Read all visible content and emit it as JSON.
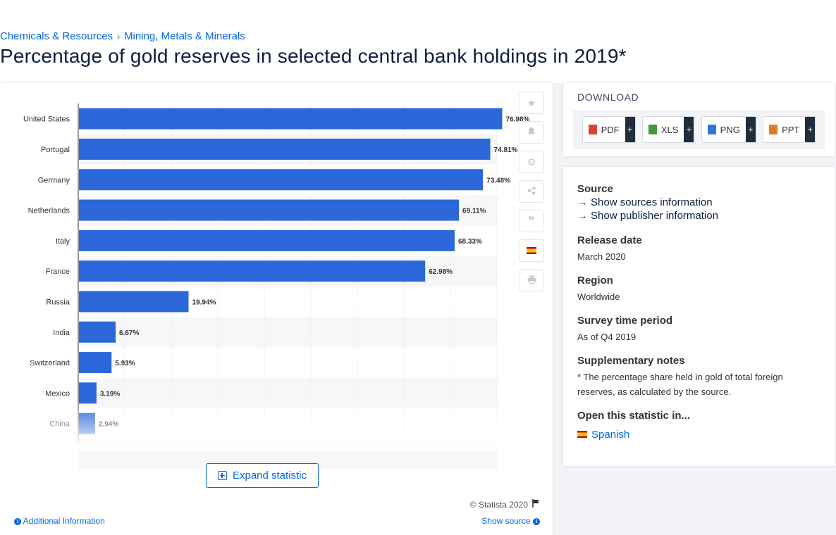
{
  "breadcrumb": {
    "item1": "Chemicals & Resources",
    "separator": "›",
    "item2": "Mining, Metals & Minerals"
  },
  "page": {
    "title": "Percentage of gold reserves in selected central bank holdings in 2019*"
  },
  "chart_data": {
    "type": "bar",
    "orientation": "horizontal",
    "title": "",
    "xlabel": "",
    "ylabel": "",
    "xlim": [
      0,
      90
    ],
    "categories": [
      "United States",
      "Portugal",
      "Germany",
      "Netherlands",
      "Italy",
      "France",
      "Russia",
      "India",
      "Switzerland",
      "Mexico",
      "China"
    ],
    "values": [
      76.98,
      74.81,
      73.48,
      69.11,
      68.33,
      62.98,
      19.94,
      6.67,
      5.93,
      3.19,
      2.94
    ],
    "value_labels": [
      "76.98%",
      "74.81%",
      "73.48%",
      "69.11%",
      "68.33%",
      "62.98%",
      "19.94%",
      "6.67%",
      "5.93%",
      "3.19%",
      "2.94%"
    ],
    "bar_color": "#2b67d9",
    "grid": true
  },
  "chart_actions": {
    "expand_label": "Expand statistic",
    "copyright": "© Statista 2020",
    "additional_info": "Additional Information",
    "show_source": "Show source"
  },
  "tools": [
    "star-icon",
    "bell-icon",
    "gear-icon",
    "share-icon",
    "quote-icon",
    "flag-es-icon",
    "print-icon"
  ],
  "download": {
    "title": "DOWNLOAD",
    "buttons": [
      {
        "label": "PDF",
        "plus": "+",
        "color": "#d9413a"
      },
      {
        "label": "XLS",
        "plus": "+",
        "color": "#3d9a3d"
      },
      {
        "label": "PNG",
        "plus": "+",
        "color": "#2b7bd4"
      },
      {
        "label": "PPT",
        "plus": "+",
        "color": "#e07b2a"
      }
    ]
  },
  "info": {
    "source_title": "Source",
    "show_sources": "Show sources information",
    "show_publisher": "Show publisher information",
    "release_title": "Release date",
    "release_value": "March 2020",
    "region_title": "Region",
    "region_value": "Worldwide",
    "survey_title": "Survey time period",
    "survey_value": "As of Q4 2019",
    "notes_title": "Supplementary notes",
    "notes_value": "* The percentage share held in gold of total foreign reserves, as calculated by the source.",
    "open_title": "Open this statistic in...",
    "open_lang": "Spanish"
  }
}
